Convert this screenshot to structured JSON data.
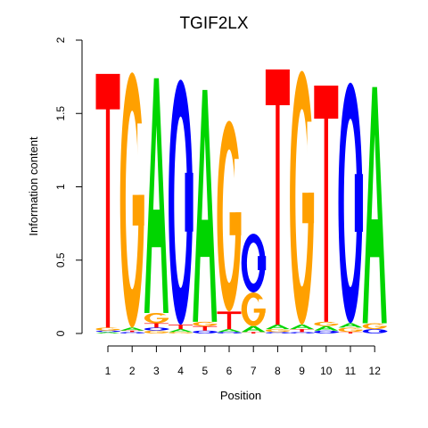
{
  "chart_data": {
    "type": "sequence-logo",
    "title": "TGIF2LX",
    "xlabel": "Position",
    "ylabel": "Information content",
    "ylim": [
      0,
      2
    ],
    "y_ticks": [
      "0",
      "0.5",
      "1",
      "1.5",
      "2"
    ],
    "x_ticks": [
      "1",
      "2",
      "3",
      "4",
      "5",
      "6",
      "7",
      "8",
      "9",
      "10",
      "11",
      "12"
    ],
    "colors": {
      "A": "#00d500",
      "C": "#0000ff",
      "G": "#ffa000",
      "T": "#ff0000"
    },
    "positions": [
      {
        "pos": "1",
        "stack": [
          [
            "A",
            0.01
          ],
          [
            "C",
            0.01
          ],
          [
            "G",
            0.02
          ],
          [
            "T",
            1.73
          ]
        ]
      },
      {
        "pos": "2",
        "stack": [
          [
            "C",
            0.01
          ],
          [
            "T",
            0.01
          ],
          [
            "A",
            0.02
          ],
          [
            "G",
            1.74
          ]
        ]
      },
      {
        "pos": "3",
        "stack": [
          [
            "G",
            0.02
          ],
          [
            "C",
            0.02
          ],
          [
            "T",
            0.03
          ],
          [
            "G",
            0.07
          ],
          [
            "A",
            1.6
          ]
        ]
      },
      {
        "pos": "4",
        "stack": [
          [
            "G",
            0.01
          ],
          [
            "A",
            0.02
          ],
          [
            "T",
            0.03
          ],
          [
            "C",
            1.67
          ]
        ]
      },
      {
        "pos": "5",
        "stack": [
          [
            "C",
            0.02
          ],
          [
            "T",
            0.03
          ],
          [
            "G",
            0.03
          ],
          [
            "A",
            1.58
          ]
        ]
      },
      {
        "pos": "6",
        "stack": [
          [
            "C",
            0.01
          ],
          [
            "A",
            0.02
          ],
          [
            "T",
            0.12
          ],
          [
            "G",
            1.3
          ]
        ]
      },
      {
        "pos": "7",
        "stack": [
          [
            "T",
            0.01
          ],
          [
            "A",
            0.04
          ],
          [
            "G",
            0.23
          ],
          [
            "C",
            0.4
          ]
        ]
      },
      {
        "pos": "8",
        "stack": [
          [
            "C",
            0.01
          ],
          [
            "G",
            0.02
          ],
          [
            "A",
            0.03
          ],
          [
            "T",
            1.74
          ]
        ]
      },
      {
        "pos": "9",
        "stack": [
          [
            "C",
            0.01
          ],
          [
            "T",
            0.02
          ],
          [
            "A",
            0.03
          ],
          [
            "G",
            1.73
          ]
        ]
      },
      {
        "pos": "10",
        "stack": [
          [
            "C",
            0.02
          ],
          [
            "A",
            0.03
          ],
          [
            "G",
            0.03
          ],
          [
            "T",
            1.61
          ]
        ]
      },
      {
        "pos": "11",
        "stack": [
          [
            "T",
            0.01
          ],
          [
            "G",
            0.03
          ],
          [
            "A",
            0.03
          ],
          [
            "C",
            1.64
          ]
        ]
      },
      {
        "pos": "12",
        "stack": [
          [
            "C",
            0.03
          ],
          [
            "G",
            0.04
          ],
          [
            "A",
            1.61
          ]
        ]
      }
    ]
  }
}
